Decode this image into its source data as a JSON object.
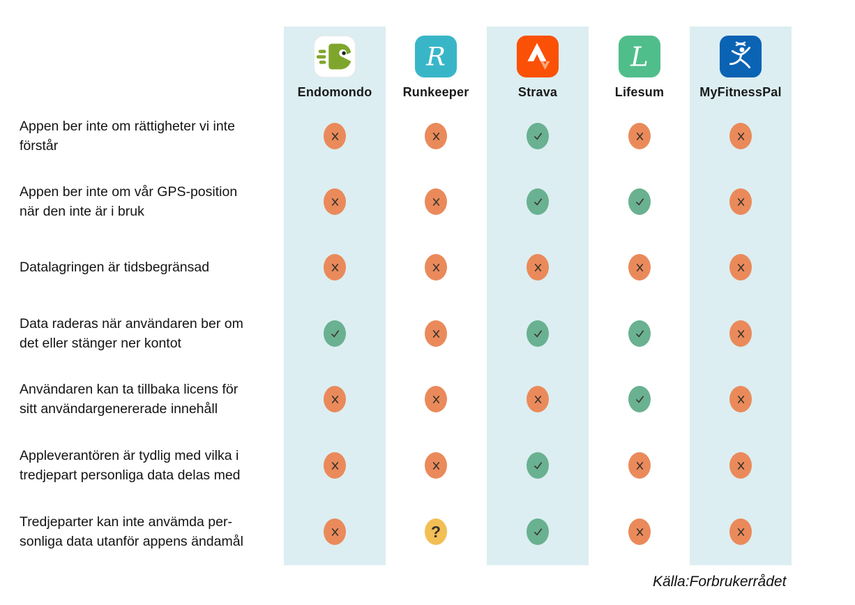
{
  "chart_data": {
    "type": "table",
    "title": "",
    "columns": [
      "Endomondo",
      "Runkeeper",
      "Strava",
      "Lifesum",
      "MyFitnessPal"
    ],
    "rows": [
      {
        "criterion": "Appen ber inte om rättigheter vi inte förstår",
        "values": [
          "no",
          "no",
          "yes",
          "no",
          "no"
        ]
      },
      {
        "criterion": "Appen ber inte om vår GPS-position när den inte är i bruk",
        "values": [
          "no",
          "no",
          "yes",
          "yes",
          "no"
        ]
      },
      {
        "criterion": "Datalagringen är tidsbegränsad",
        "values": [
          "no",
          "no",
          "no",
          "no",
          "no"
        ]
      },
      {
        "criterion": "Data raderas när användaren ber om det eller stänger ner kontot",
        "values": [
          "yes",
          "no",
          "yes",
          "yes",
          "no"
        ]
      },
      {
        "criterion": "Användaren kan ta tillbaka licens för sitt användargenererade innehåll",
        "values": [
          "no",
          "no",
          "no",
          "yes",
          "no"
        ]
      },
      {
        "criterion": "Appleverantören är tydlig med vilka i tredjepart personliga data delas med",
        "values": [
          "no",
          "no",
          "yes",
          "no",
          "no"
        ]
      },
      {
        "criterion": "Tredjeparter kan inte anvämda personliga data utanför appens ändamål",
        "values": [
          "no",
          "unknown",
          "yes",
          "no",
          "no"
        ]
      }
    ],
    "legend": {
      "yes": "check mark (criterion met)",
      "no": "cross mark (criterion not met)",
      "unknown": "question mark (unclear)"
    },
    "source": "Källa:Forbrukerrådet"
  },
  "header": {
    "apps": [
      {
        "name": "Endomondo",
        "tile": "#FFFFFF",
        "accent": "#7FA62C"
      },
      {
        "name": "Runkeeper",
        "tile": "#38B6C8",
        "accent": "#FFFFFF",
        "letter": "R"
      },
      {
        "name": "Strava",
        "tile": "#FB5106",
        "accent": "#FFFFFF"
      },
      {
        "name": "Lifesum",
        "tile": "#50BE8B",
        "accent": "#FFFFFF",
        "letter": "L"
      },
      {
        "name": "MyFitnessPal",
        "tile": "#0B63B4",
        "accent": "#FFFFFF"
      }
    ]
  },
  "criteria": [
    {
      "lines": [
        "Appen ber inte om rättigheter vi inte",
        "förstår"
      ],
      "values": [
        "no",
        "no",
        "yes",
        "no",
        "no"
      ]
    },
    {
      "lines": [
        "Appen ber inte om vår GPS-position",
        "när den inte är i bruk"
      ],
      "values": [
        "no",
        "no",
        "yes",
        "yes",
        "no"
      ]
    },
    {
      "lines": [
        "Datalagringen är tidsbegränsad"
      ],
      "values": [
        "no",
        "no",
        "no",
        "no",
        "no"
      ]
    },
    {
      "lines": [
        "Data raderas när användaren ber om",
        "det eller stänger ner kontot"
      ],
      "values": [
        "yes",
        "no",
        "yes",
        "yes",
        "no"
      ]
    },
    {
      "lines": [
        "Användaren kan ta tillbaka licens för",
        "sitt användargenererade innehåll"
      ],
      "values": [
        "no",
        "no",
        "no",
        "yes",
        "no"
      ]
    },
    {
      "lines": [
        "Appleverantören är tydlig med vilka i",
        "tredjepart personliga data delas med"
      ],
      "values": [
        "no",
        "no",
        "yes",
        "no",
        "no"
      ]
    },
    {
      "lines": [
        "Tredjeparter kan inte anvämda per-",
        "sonliga data utanför appens ändamål"
      ],
      "values": [
        "no",
        "unknown",
        "yes",
        "no",
        "no"
      ]
    }
  ],
  "marks": {
    "yes": {
      "color": "#69B191",
      "meaning": "check"
    },
    "no": {
      "color": "#EA8A5B",
      "meaning": "cross"
    },
    "unknown": {
      "color": "#F2BF55",
      "meaning": "question",
      "glyph": "?"
    }
  },
  "footer": {
    "source": "Källa:Forbrukerrådet"
  },
  "colors": {
    "band": "#DCEEF1",
    "glyph": "#39332B",
    "text": "#141414"
  }
}
